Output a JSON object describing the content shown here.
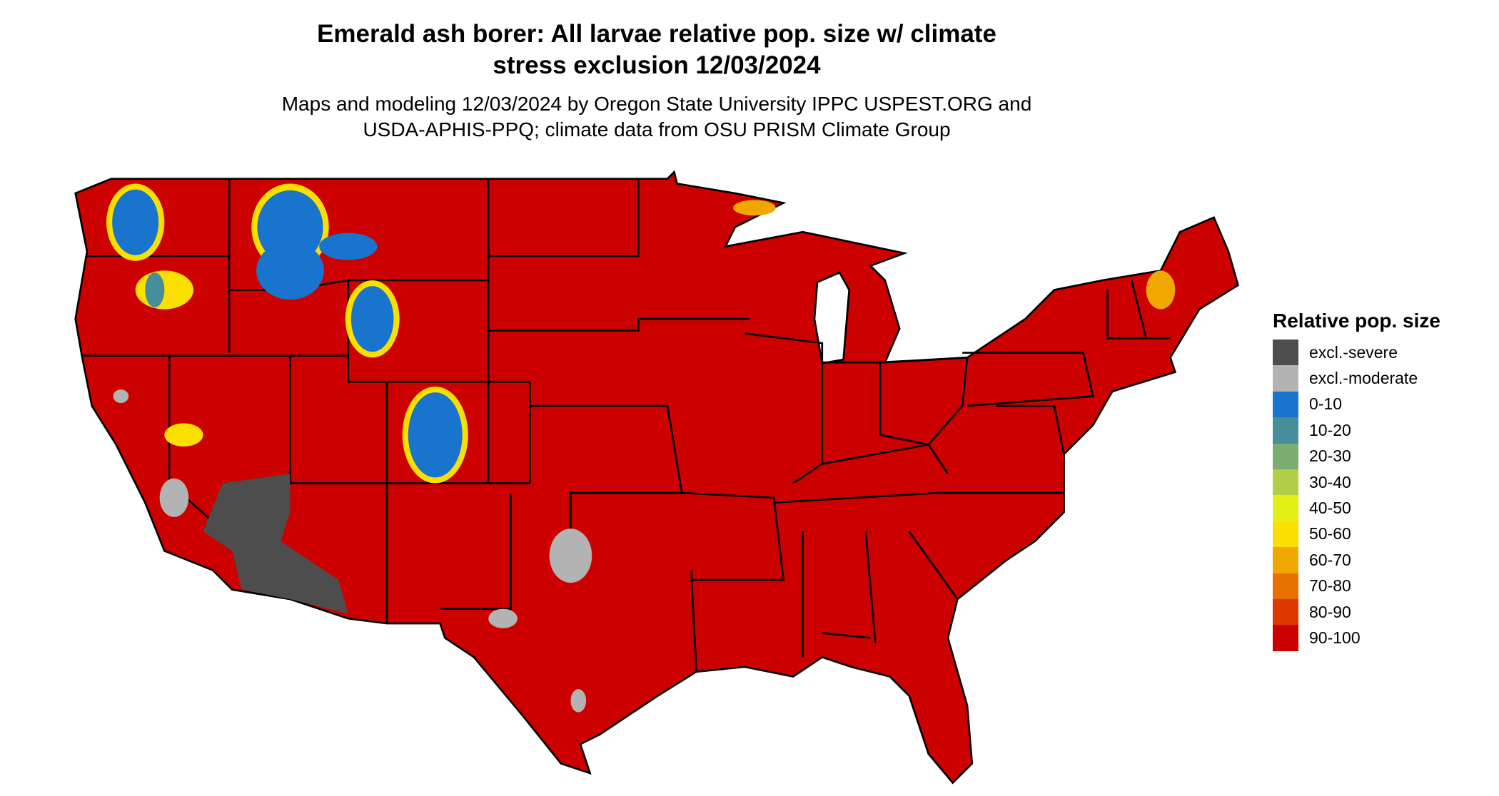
{
  "title_line1": "Emerald ash borer: All larvae relative pop. size w/ climate",
  "title_line2": "stress exclusion 12/03/2024",
  "subtitle_line1": "Maps and modeling 12/03/2024 by Oregon State University IPPC USPEST.ORG and",
  "subtitle_line2": "USDA-APHIS-PPQ; climate data from OSU PRISM Climate Group",
  "map": {
    "region": "Contiguous United States",
    "dominant_class": "90-100"
  },
  "legend": {
    "title": "Relative pop. size",
    "items": [
      {
        "label": "excl.-severe",
        "color": "#4d4d4d"
      },
      {
        "label": "excl.-moderate",
        "color": "#b3b3b3"
      },
      {
        "label": "0-10",
        "color": "#1874cd"
      },
      {
        "label": "10-20",
        "color": "#458e9a"
      },
      {
        "label": "20-30",
        "color": "#7bad72"
      },
      {
        "label": "30-40",
        "color": "#b0cf47"
      },
      {
        "label": "40-50",
        "color": "#e5ee17"
      },
      {
        "label": "50-60",
        "color": "#fae000"
      },
      {
        "label": "60-70",
        "color": "#f0a800"
      },
      {
        "label": "70-80",
        "color": "#e87000"
      },
      {
        "label": "80-90",
        "color": "#dc3800"
      },
      {
        "label": "90-100",
        "color": "#cd0000"
      }
    ]
  }
}
